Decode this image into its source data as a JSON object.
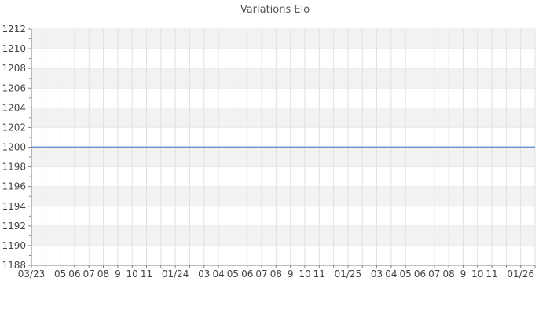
{
  "chart_data": {
    "type": "line",
    "title": "Variations Elo",
    "xlabel": "",
    "ylabel": "",
    "legend_position": "none",
    "grid": true,
    "x_axis": {
      "tick_labels": [
        "03/23",
        "",
        "05",
        "06",
        "07",
        "08",
        "9",
        "10",
        "11",
        "",
        "01/24",
        "",
        "03",
        "04",
        "05",
        "06",
        "07",
        "08",
        "9",
        "10",
        "11",
        "",
        "01/25",
        "",
        "03",
        "04",
        "05",
        "06",
        "07",
        "08",
        "9",
        "10",
        "11",
        "",
        "01/26",
        ""
      ]
    },
    "y_axis": {
      "min": 1188,
      "max": 1212,
      "major_step": 2,
      "minor_step": 1,
      "tick_labels": [
        "1212",
        "1210",
        "1208",
        "1206",
        "1204",
        "1202",
        "1200",
        "1198",
        "1196",
        "1194",
        "1192",
        "1190",
        "1188"
      ]
    },
    "series": [
      {
        "name": "Elo",
        "color": "#6a8fd2",
        "values": [
          1200,
          1200,
          1200,
          1200,
          1200,
          1200,
          1200,
          1200,
          1200,
          1200,
          1200,
          1200,
          1200,
          1200,
          1200,
          1200,
          1200,
          1200,
          1200,
          1200,
          1200,
          1200,
          1200,
          1200,
          1200,
          1200,
          1200,
          1200,
          1200,
          1200,
          1200,
          1200,
          1200,
          1200,
          1200,
          1200
        ]
      }
    ],
    "colors": {
      "band": "#f2f2f2",
      "grid_vertical": "#e0e0e0",
      "grid_horizontal": "#e9e9e9",
      "axis": "#808080",
      "tick_text": "#444444",
      "title_text": "#555555",
      "background": "#ffffff"
    }
  }
}
